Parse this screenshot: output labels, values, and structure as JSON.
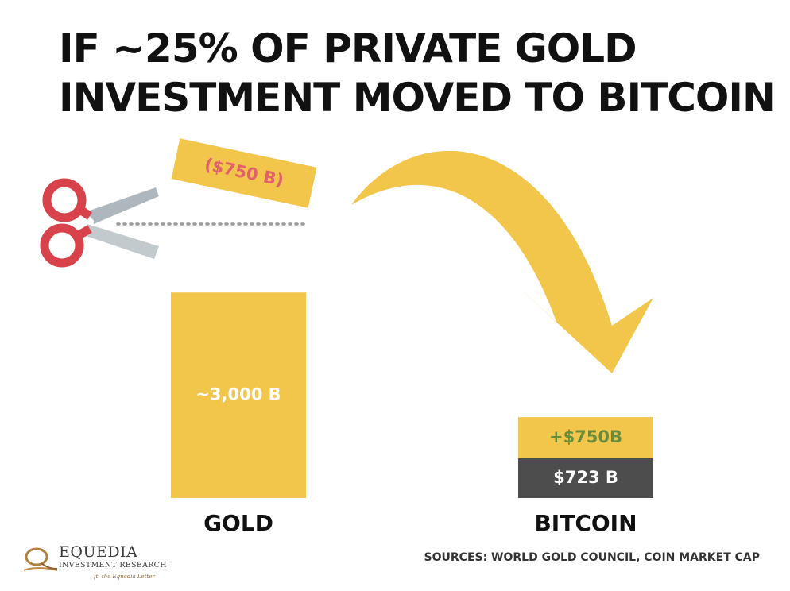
{
  "title": {
    "line1": "IF ~25% OF PRIVATE GOLD",
    "line2": "INVESTMENT MOVED TO BITCOIN"
  },
  "chart_data": {
    "type": "bar",
    "categories": [
      "GOLD",
      "BITCOIN"
    ],
    "series": [
      {
        "values": [
          3000,
          723
        ]
      },
      {
        "values": [
          -750,
          750
        ]
      }
    ],
    "data_labels": {
      "gold_main": "~3,000 B",
      "gold_cut": "($750 B)",
      "bitcoin_base": "$723 B",
      "bitcoin_added": "+$750B"
    }
  },
  "colors": {
    "gold": "#F2C54B",
    "bitcoin_base": "#4D4D4D",
    "cut_text": "#E0606B",
    "added_text": "#6A8C3A",
    "arrow": "#F2C54B",
    "scissors_handle": "#D8434B",
    "scissors_blade": "#AEB7BD"
  },
  "icons": [
    "scissors-icon",
    "curved-arrow-icon",
    "equedia-logo-icon"
  ],
  "logo": {
    "name": "EQUEDIA",
    "subtitle": "INVESTMENT RESEARCH",
    "tagline": "ft. the Equedia Letter"
  },
  "sources": "SOURCES: WORLD GOLD COUNCIL, COIN MARKET CAP"
}
